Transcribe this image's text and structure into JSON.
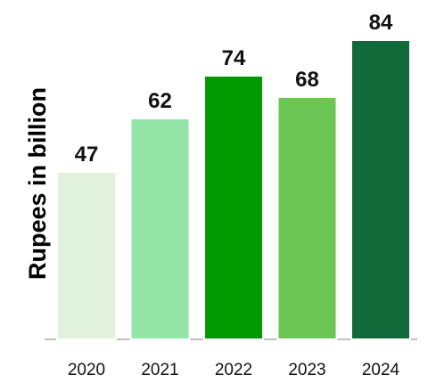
{
  "chart_data": {
    "type": "bar",
    "categories": [
      "2020",
      "2021",
      "2022",
      "2023",
      "2024"
    ],
    "values": [
      47,
      62,
      74,
      68,
      84
    ],
    "data_labels": [
      "47",
      "62",
      "74",
      "68",
      "84"
    ],
    "title": "",
    "xlabel": "",
    "ylabel": "Rupees in billion",
    "ylim": [
      0,
      90
    ],
    "grid": false,
    "legend": "none",
    "bar_colors": [
      "#e0f2dc",
      "#93e6a6",
      "#009a00",
      "#6cc655",
      "#12693a"
    ],
    "axis_color": "#bfbfbf"
  }
}
